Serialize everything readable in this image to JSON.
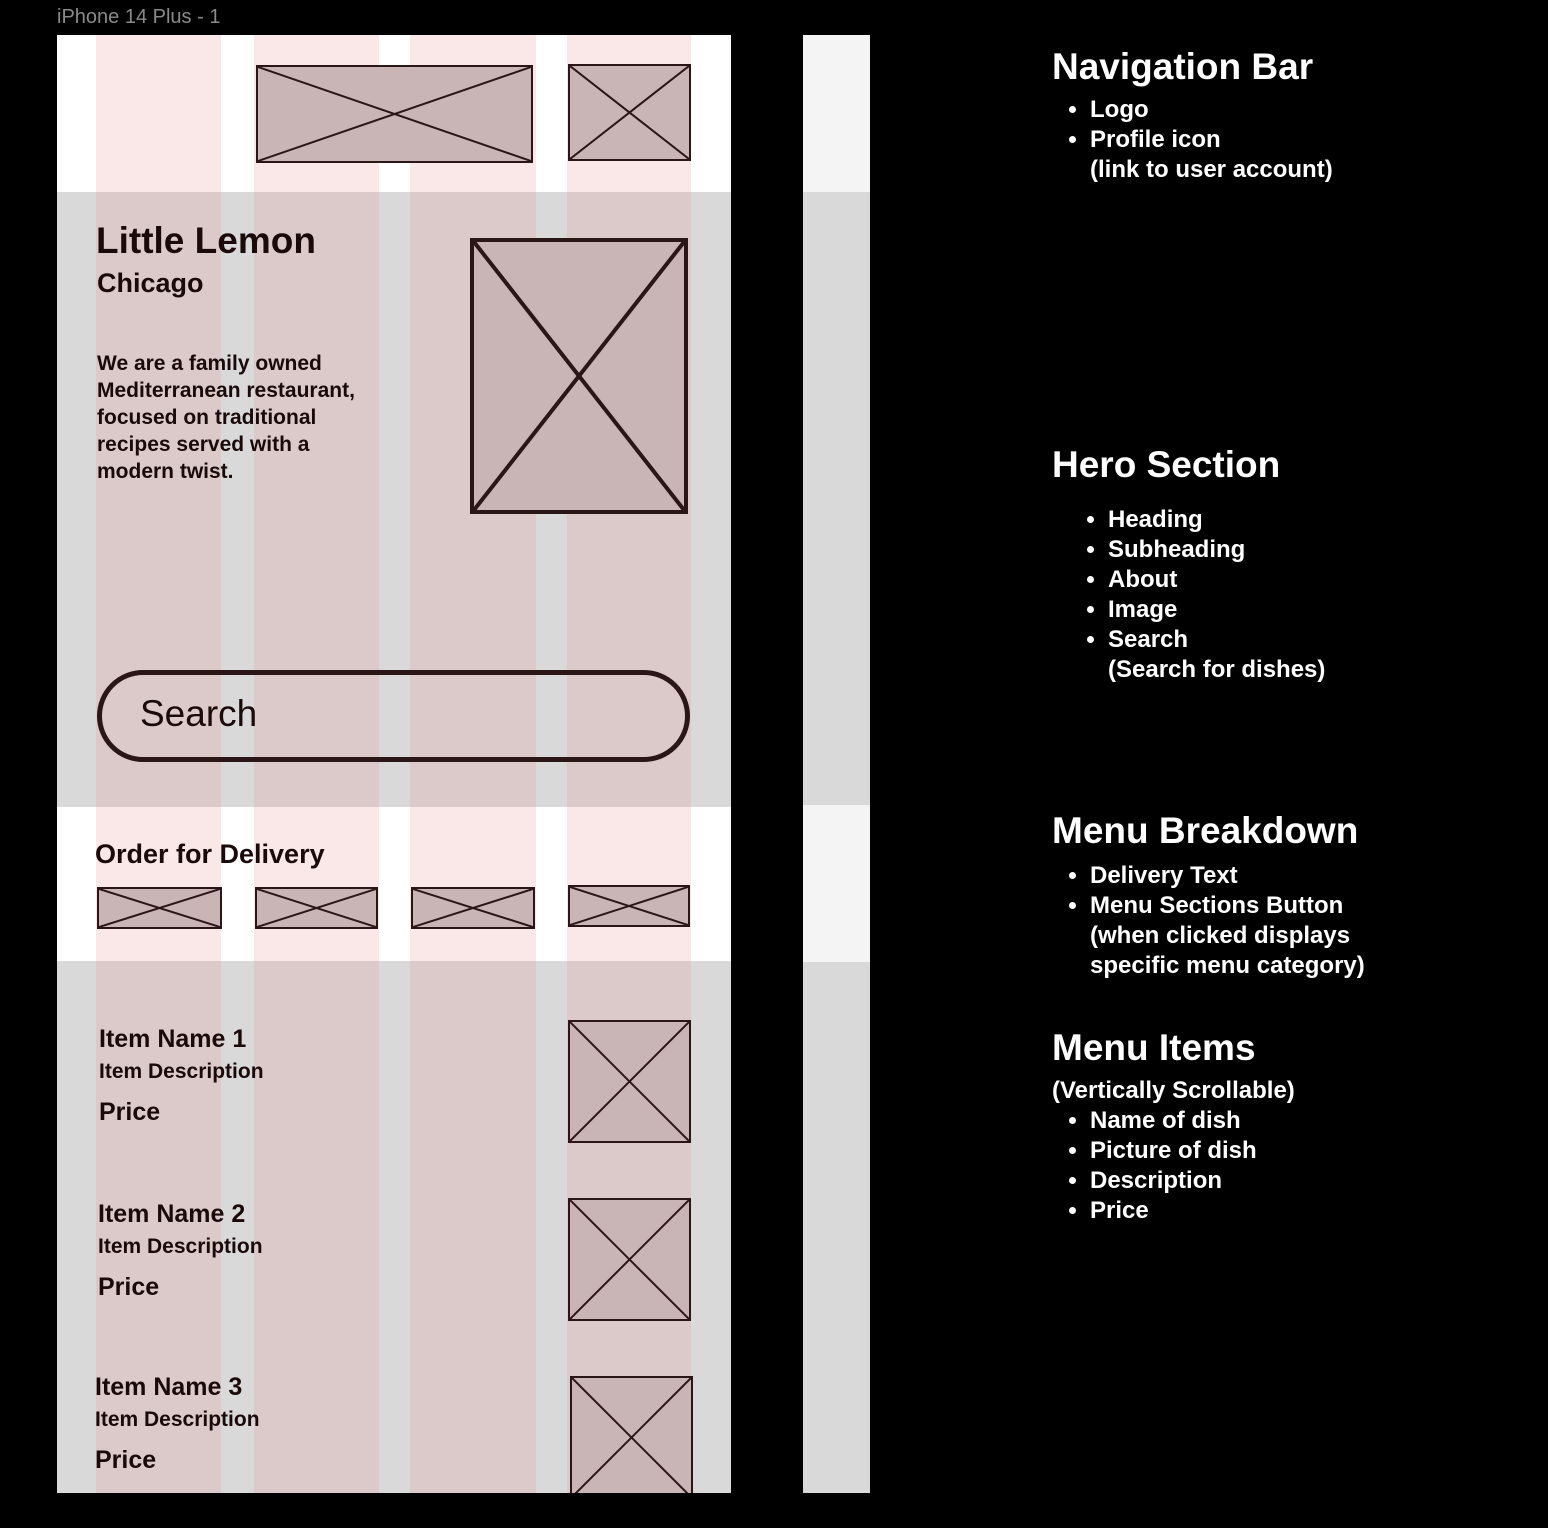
{
  "frame_label": "iPhone 14 Plus - 1",
  "colors": {
    "background": "#000000",
    "section_white": "#ffffff",
    "section_gray": "#d9d9d9",
    "column_overlay": "#e69696",
    "placeholder_fill": "#c9b4b6",
    "sketch_stroke": "#2a1517",
    "annotation_text": "#ffffff"
  },
  "navigation_bar": {
    "logo": "placeholder-image",
    "profile_icon": "placeholder-image"
  },
  "hero": {
    "title": "Little Lemon",
    "subtitle": "Chicago",
    "about_lines": [
      "We are a family owned",
      "Mediterranean restaurant,",
      "focused on traditional",
      "recipes served with a",
      "modern twist."
    ],
    "search_placeholder": "Search"
  },
  "delivery": {
    "heading": "Order for Delivery",
    "category_buttons": 4
  },
  "menu_items": [
    {
      "name": "Item Name 1",
      "description": "Item Description",
      "price": "Price"
    },
    {
      "name": "Item Name 2",
      "description": "Item Description",
      "price": "Price"
    },
    {
      "name": "Item Name 3",
      "description": "Item Description",
      "price": "Price"
    }
  ],
  "annotations": {
    "nav": {
      "title": "Navigation Bar",
      "items": [
        "Logo",
        "Profile icon"
      ],
      "item_continuation": "(link to user account)"
    },
    "hero": {
      "title": "Hero Section",
      "items": [
        "Heading",
        "Subheading",
        "About",
        "Image",
        "Search"
      ],
      "item_continuation": "(Search for dishes)"
    },
    "breakdown": {
      "title": "Menu Breakdown",
      "items": [
        "Delivery Text",
        "Menu Sections Button"
      ],
      "item_continuation_1": "(when clicked displays",
      "item_continuation_2": "specific menu category)"
    },
    "menu": {
      "title": "Menu Items",
      "subtitle": "(Vertically Scrollable)",
      "items": [
        "Name of dish",
        "Picture of dish",
        "Description",
        "Price"
      ]
    }
  }
}
